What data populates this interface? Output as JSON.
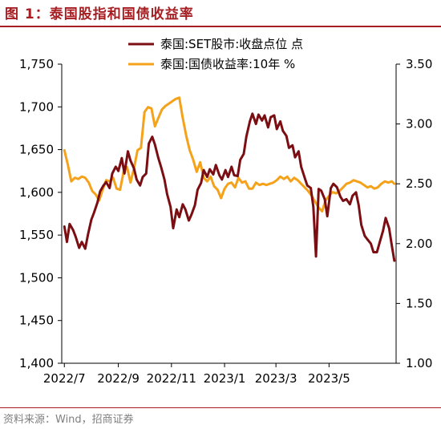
{
  "header": {
    "title": "图 1：泰国股指和国债收益率"
  },
  "footer": {
    "source": "资料来源：Wind，招商证券"
  },
  "colors": {
    "brand": "#A61E22",
    "set_series": "#7B0E12",
    "yield_series": "#F5A21B",
    "axis": "#000000"
  },
  "chart_data": {
    "type": "line",
    "title": "",
    "legend": {
      "position": "top",
      "entries": [
        "泰国:SET股市:收盘点位 点",
        "泰国:国债收益率:10年 %"
      ]
    },
    "x_tick_labels": [
      "2022/7",
      "2022/9",
      "2022/11",
      "2023/1",
      "2023/3",
      "2023/5"
    ],
    "y_left": {
      "label": "",
      "range": [
        1400,
        1750
      ],
      "ticks": [
        "1,400",
        "1,450",
        "1,500",
        "1,550",
        "1,600",
        "1,650",
        "1,700",
        "1,750"
      ]
    },
    "y_right": {
      "label": "",
      "range": [
        1.0,
        3.5
      ],
      "ticks": [
        "1.00",
        "1.50",
        "2.00",
        "2.50",
        "3.00",
        "3.50"
      ]
    },
    "grid": false,
    "series": [
      {
        "name": "泰国:SET股市:收盘点位 点",
        "axis": "left",
        "color": "#7B0E12",
        "points": [
          [
            "2022-07-01",
            1560
          ],
          [
            "2022-07-04",
            1542
          ],
          [
            "2022-07-07",
            1563
          ],
          [
            "2022-07-11",
            1556
          ],
          [
            "2022-07-14",
            1548
          ],
          [
            "2022-07-18",
            1535
          ],
          [
            "2022-07-21",
            1542
          ],
          [
            "2022-07-25",
            1534
          ],
          [
            "2022-07-28",
            1550
          ],
          [
            "2022-08-01",
            1568
          ],
          [
            "2022-08-04",
            1576
          ],
          [
            "2022-08-08",
            1588
          ],
          [
            "2022-08-11",
            1601
          ],
          [
            "2022-08-15",
            1608
          ],
          [
            "2022-08-18",
            1612
          ],
          [
            "2022-08-22",
            1605
          ],
          [
            "2022-08-25",
            1622
          ],
          [
            "2022-08-29",
            1630
          ],
          [
            "2022-09-01",
            1625
          ],
          [
            "2022-09-05",
            1640
          ],
          [
            "2022-09-08",
            1622
          ],
          [
            "2022-09-12",
            1648
          ],
          [
            "2022-09-15",
            1637
          ],
          [
            "2022-09-19",
            1628
          ],
          [
            "2022-09-22",
            1615
          ],
          [
            "2022-09-26",
            1608
          ],
          [
            "2022-09-29",
            1618
          ],
          [
            "2022-10-03",
            1622
          ],
          [
            "2022-10-06",
            1657
          ],
          [
            "2022-10-10",
            1665
          ],
          [
            "2022-10-13",
            1656
          ],
          [
            "2022-10-17",
            1640
          ],
          [
            "2022-10-20",
            1630
          ],
          [
            "2022-10-24",
            1615
          ],
          [
            "2022-10-27",
            1598
          ],
          [
            "2022-10-31",
            1583
          ],
          [
            "2022-11-03",
            1558
          ],
          [
            "2022-11-07",
            1580
          ],
          [
            "2022-11-10",
            1571
          ],
          [
            "2022-11-14",
            1586
          ],
          [
            "2022-11-17",
            1580
          ],
          [
            "2022-11-21",
            1567
          ],
          [
            "2022-11-24",
            1574
          ],
          [
            "2022-11-28",
            1585
          ],
          [
            "2022-12-01",
            1603
          ],
          [
            "2022-12-05",
            1611
          ],
          [
            "2022-12-08",
            1626
          ],
          [
            "2022-12-12",
            1618
          ],
          [
            "2022-12-15",
            1627
          ],
          [
            "2022-12-19",
            1621
          ],
          [
            "2022-12-22",
            1632
          ],
          [
            "2022-12-26",
            1620
          ],
          [
            "2022-12-29",
            1615
          ],
          [
            "2023-01-02",
            1626
          ],
          [
            "2023-01-05",
            1618
          ],
          [
            "2023-01-09",
            1630
          ],
          [
            "2023-01-12",
            1620
          ],
          [
            "2023-01-16",
            1619
          ],
          [
            "2023-01-19",
            1638
          ],
          [
            "2023-01-23",
            1645
          ],
          [
            "2023-01-26",
            1665
          ],
          [
            "2023-01-30",
            1683
          ],
          [
            "2023-02-02",
            1692
          ],
          [
            "2023-02-06",
            1680
          ],
          [
            "2023-02-09",
            1691
          ],
          [
            "2023-02-13",
            1684
          ],
          [
            "2023-02-16",
            1690
          ],
          [
            "2023-02-20",
            1676
          ],
          [
            "2023-02-23",
            1688
          ],
          [
            "2023-02-27",
            1690
          ],
          [
            "2023-03-02",
            1674
          ],
          [
            "2023-03-06",
            1683
          ],
          [
            "2023-03-09",
            1672
          ],
          [
            "2023-03-13",
            1666
          ],
          [
            "2023-03-16",
            1652
          ],
          [
            "2023-03-20",
            1655
          ],
          [
            "2023-03-23",
            1641
          ],
          [
            "2023-03-27",
            1648
          ],
          [
            "2023-03-30",
            1630
          ],
          [
            "2023-04-03",
            1617
          ],
          [
            "2023-04-06",
            1608
          ],
          [
            "2023-04-10",
            1605
          ],
          [
            "2023-04-13",
            1583
          ],
          [
            "2023-04-16",
            1525
          ],
          [
            "2023-04-19",
            1604
          ],
          [
            "2023-04-22",
            1602
          ],
          [
            "2023-04-26",
            1592
          ],
          [
            "2023-04-29",
            1572
          ],
          [
            "2023-05-03",
            1605
          ],
          [
            "2023-05-06",
            1610
          ],
          [
            "2023-05-10",
            1606
          ],
          [
            "2023-05-14",
            1595
          ],
          [
            "2023-05-17",
            1590
          ],
          [
            "2023-05-21",
            1592
          ],
          [
            "2023-05-25",
            1586
          ],
          [
            "2023-05-28",
            1596
          ],
          [
            "2023-06-01",
            1600
          ],
          [
            "2023-06-04",
            1585
          ],
          [
            "2023-06-07",
            1562
          ],
          [
            "2023-06-11",
            1549
          ],
          [
            "2023-06-14",
            1545
          ],
          [
            "2023-06-18",
            1540
          ],
          [
            "2023-06-21",
            1530
          ],
          [
            "2023-06-25",
            1530
          ],
          [
            "2023-06-28",
            1541
          ],
          [
            "2023-07-02",
            1555
          ],
          [
            "2023-07-05",
            1570
          ],
          [
            "2023-07-09",
            1558
          ],
          [
            "2023-07-12",
            1538
          ],
          [
            "2023-07-15",
            1520
          ]
        ]
      },
      {
        "name": "泰国:国债收益率:10年 %",
        "axis": "right",
        "color": "#F5A21B",
        "points": [
          [
            "2022-07-01",
            2.78
          ],
          [
            "2022-07-05",
            2.66
          ],
          [
            "2022-07-09",
            2.52
          ],
          [
            "2022-07-13",
            2.55
          ],
          [
            "2022-07-17",
            2.54
          ],
          [
            "2022-07-21",
            2.56
          ],
          [
            "2022-07-25",
            2.55
          ],
          [
            "2022-07-29",
            2.51
          ],
          [
            "2022-08-02",
            2.44
          ],
          [
            "2022-08-06",
            2.41
          ],
          [
            "2022-08-10",
            2.36
          ],
          [
            "2022-08-14",
            2.45
          ],
          [
            "2022-08-18",
            2.53
          ],
          [
            "2022-08-22",
            2.52
          ],
          [
            "2022-08-26",
            2.55
          ],
          [
            "2022-08-30",
            2.46
          ],
          [
            "2022-09-03",
            2.45
          ],
          [
            "2022-09-07",
            2.6
          ],
          [
            "2022-09-11",
            2.64
          ],
          [
            "2022-09-15",
            2.51
          ],
          [
            "2022-09-19",
            2.63
          ],
          [
            "2022-09-23",
            2.78
          ],
          [
            "2022-09-27",
            2.8
          ],
          [
            "2022-10-01",
            3.1
          ],
          [
            "2022-10-05",
            3.14
          ],
          [
            "2022-10-09",
            3.13
          ],
          [
            "2022-10-13",
            2.98
          ],
          [
            "2022-10-17",
            3.05
          ],
          [
            "2022-10-21",
            3.12
          ],
          [
            "2022-10-25",
            3.15
          ],
          [
            "2022-10-29",
            3.17
          ],
          [
            "2022-11-02",
            3.19
          ],
          [
            "2022-11-06",
            3.21
          ],
          [
            "2022-11-10",
            3.22
          ],
          [
            "2022-11-14",
            3.05
          ],
          [
            "2022-11-18",
            2.9
          ],
          [
            "2022-11-22",
            2.78
          ],
          [
            "2022-11-26",
            2.7
          ],
          [
            "2022-11-30",
            2.6
          ],
          [
            "2022-12-04",
            2.68
          ],
          [
            "2022-12-08",
            2.55
          ],
          [
            "2022-12-12",
            2.52
          ],
          [
            "2022-12-16",
            2.56
          ],
          [
            "2022-12-20",
            2.48
          ],
          [
            "2022-12-24",
            2.45
          ],
          [
            "2022-12-28",
            2.38
          ],
          [
            "2023-01-01",
            2.46
          ],
          [
            "2023-01-05",
            2.5
          ],
          [
            "2023-01-09",
            2.51
          ],
          [
            "2023-01-13",
            2.47
          ],
          [
            "2023-01-17",
            2.55
          ],
          [
            "2023-01-21",
            2.51
          ],
          [
            "2023-01-25",
            2.52
          ],
          [
            "2023-01-29",
            2.46
          ],
          [
            "2023-02-02",
            2.46
          ],
          [
            "2023-02-06",
            2.51
          ],
          [
            "2023-02-10",
            2.49
          ],
          [
            "2023-02-14",
            2.5
          ],
          [
            "2023-02-18",
            2.49
          ],
          [
            "2023-02-22",
            2.5
          ],
          [
            "2023-02-26",
            2.51
          ],
          [
            "2023-03-02",
            2.53
          ],
          [
            "2023-03-06",
            2.56
          ],
          [
            "2023-03-10",
            2.54
          ],
          [
            "2023-03-14",
            2.56
          ],
          [
            "2023-03-18",
            2.52
          ],
          [
            "2023-03-22",
            2.55
          ],
          [
            "2023-03-26",
            2.53
          ],
          [
            "2023-03-30",
            2.5
          ],
          [
            "2023-04-03",
            2.47
          ],
          [
            "2023-04-07",
            2.44
          ],
          [
            "2023-04-11",
            2.4
          ],
          [
            "2023-04-15",
            2.35
          ],
          [
            "2023-04-19",
            2.3
          ],
          [
            "2023-04-23",
            2.27
          ],
          [
            "2023-04-27",
            2.36
          ],
          [
            "2023-05-01",
            2.4
          ],
          [
            "2023-05-05",
            2.43
          ],
          [
            "2023-05-09",
            2.42
          ],
          [
            "2023-05-13",
            2.44
          ],
          [
            "2023-05-17",
            2.47
          ],
          [
            "2023-05-21",
            2.5
          ],
          [
            "2023-05-25",
            2.51
          ],
          [
            "2023-05-29",
            2.53
          ],
          [
            "2023-06-02",
            2.52
          ],
          [
            "2023-06-06",
            2.51
          ],
          [
            "2023-06-10",
            2.49
          ],
          [
            "2023-06-14",
            2.47
          ],
          [
            "2023-06-18",
            2.48
          ],
          [
            "2023-06-22",
            2.46
          ],
          [
            "2023-06-26",
            2.47
          ],
          [
            "2023-06-30",
            2.5
          ],
          [
            "2023-07-04",
            2.52
          ],
          [
            "2023-07-08",
            2.51
          ],
          [
            "2023-07-12",
            2.52
          ],
          [
            "2023-07-15",
            2.5
          ]
        ]
      }
    ]
  }
}
